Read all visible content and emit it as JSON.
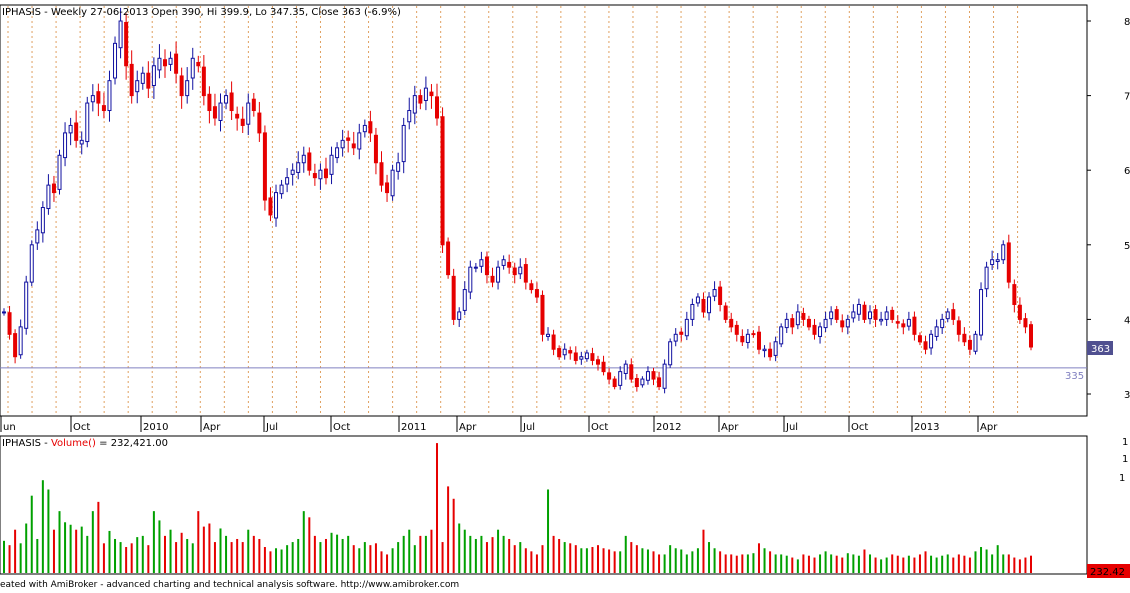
{
  "price_title": "IPHASIS - Weekly 27-06-2013 Open 390, Hi 399.9, Lo 347.35, Close 363 (-6.9%)",
  "volume_title_prefix": "IPHASIS - ",
  "volume_title_func": "Volume()",
  "volume_title_value": " = 232,421.00",
  "footer": "eated with AmiBroker - advanced charting and technical analysis software. http://www.amibroker.com",
  "colors": {
    "up": "#1010a0",
    "down": "#e60000",
    "vol_up": "#00a000",
    "vol_down": "#e60000",
    "grid": "#e0a060",
    "hline": "#8080c0",
    "badge_price": "#505090",
    "badge_vol": "#e60000"
  },
  "chart_data": [
    {
      "type": "candlestick",
      "price_axis_labels": [
        "8",
        "7",
        "6",
        "5",
        "4",
        "3"
      ],
      "ylim": [
        280,
        820
      ],
      "x_labels": [
        "un",
        "Oct",
        "2010",
        "Apr",
        "Jul",
        "Oct",
        "2011",
        "Apr",
        "Jul",
        "Oct",
        "2012",
        "Apr",
        "Jul",
        "Oct",
        "2013",
        "Apr"
      ],
      "last_close_label": "363",
      "hline_label": "335",
      "hline_value": 335,
      "closes": [
        410,
        380,
        350,
        390,
        450,
        500,
        520,
        550,
        580,
        570,
        620,
        650,
        660,
        640,
        640,
        690,
        700,
        690,
        680,
        720,
        770,
        800,
        740,
        700,
        720,
        730,
        710,
        740,
        750,
        740,
        750,
        730,
        700,
        720,
        750,
        740,
        700,
        680,
        670,
        690,
        700,
        680,
        670,
        660,
        690,
        680,
        650,
        560,
        540,
        570,
        580,
        590,
        600,
        610,
        620,
        600,
        590,
        600,
        590,
        620,
        630,
        640,
        640,
        630,
        650,
        660,
        650,
        610,
        580,
        570,
        600,
        610,
        660,
        680,
        700,
        690,
        710,
        700,
        670,
        500,
        460,
        400,
        410,
        440,
        470,
        470,
        480,
        460,
        450,
        470,
        480,
        470,
        460,
        470,
        450,
        440,
        430,
        380,
        380,
        360,
        350,
        360,
        355,
        345,
        350,
        355,
        345,
        340,
        330,
        320,
        310,
        330,
        340,
        320,
        310,
        320,
        330,
        320,
        310,
        340,
        370,
        380,
        380,
        400,
        420,
        430,
        410,
        430,
        440,
        420,
        400,
        390,
        380,
        370,
        380,
        380,
        360,
        360,
        350,
        370,
        390,
        400,
        390,
        410,
        400,
        390,
        380,
        390,
        400,
        410,
        400,
        390,
        400,
        410,
        420,
        400,
        410,
        400,
        400,
        410,
        400,
        395,
        390,
        400,
        380,
        370,
        360,
        380,
        390,
        400,
        410,
        400,
        380,
        370,
        360,
        380,
        440,
        470,
        480,
        480,
        500,
        450,
        420,
        400,
        390,
        363
      ],
      "volumes": [
        52,
        45,
        70,
        48,
        80,
        125,
        55,
        150,
        135,
        70,
        100,
        82,
        78,
        70,
        75,
        60,
        100,
        115,
        48,
        68,
        55,
        50,
        42,
        48,
        58,
        60,
        45,
        100,
        85,
        60,
        70,
        50,
        65,
        55,
        48,
        100,
        75,
        80,
        50,
        72,
        60,
        50,
        55,
        50,
        70,
        60,
        55,
        42,
        35,
        40,
        38,
        45,
        50,
        55,
        100,
        90,
        60,
        50,
        55,
        65,
        62,
        55,
        60,
        45,
        40,
        50,
        45,
        48,
        35,
        30,
        40,
        50,
        60,
        70,
        45,
        60,
        60,
        70,
        210,
        50,
        140,
        120,
        80,
        70,
        60,
        55,
        60,
        50,
        58,
        70,
        60,
        55,
        45,
        50,
        40,
        35,
        30,
        45,
        135,
        60,
        55,
        50,
        48,
        45,
        40,
        40,
        42,
        45,
        40,
        38,
        35,
        35,
        60,
        50,
        45,
        40,
        38,
        35,
        30,
        30,
        45,
        40,
        38,
        30,
        35,
        40,
        70,
        50,
        40,
        35,
        30,
        30,
        28,
        30,
        30,
        32,
        48,
        40,
        35,
        30,
        30,
        28,
        25,
        22,
        30,
        28,
        25,
        30,
        35,
        30,
        28,
        25,
        32,
        30,
        28,
        38,
        30,
        25,
        22,
        25,
        30,
        28,
        25,
        28,
        25,
        30,
        35,
        28,
        25,
        28,
        30,
        25,
        30,
        28,
        25,
        35,
        42,
        38,
        30,
        45,
        30,
        30,
        25,
        22,
        25,
        28
      ]
    }
  ]
}
